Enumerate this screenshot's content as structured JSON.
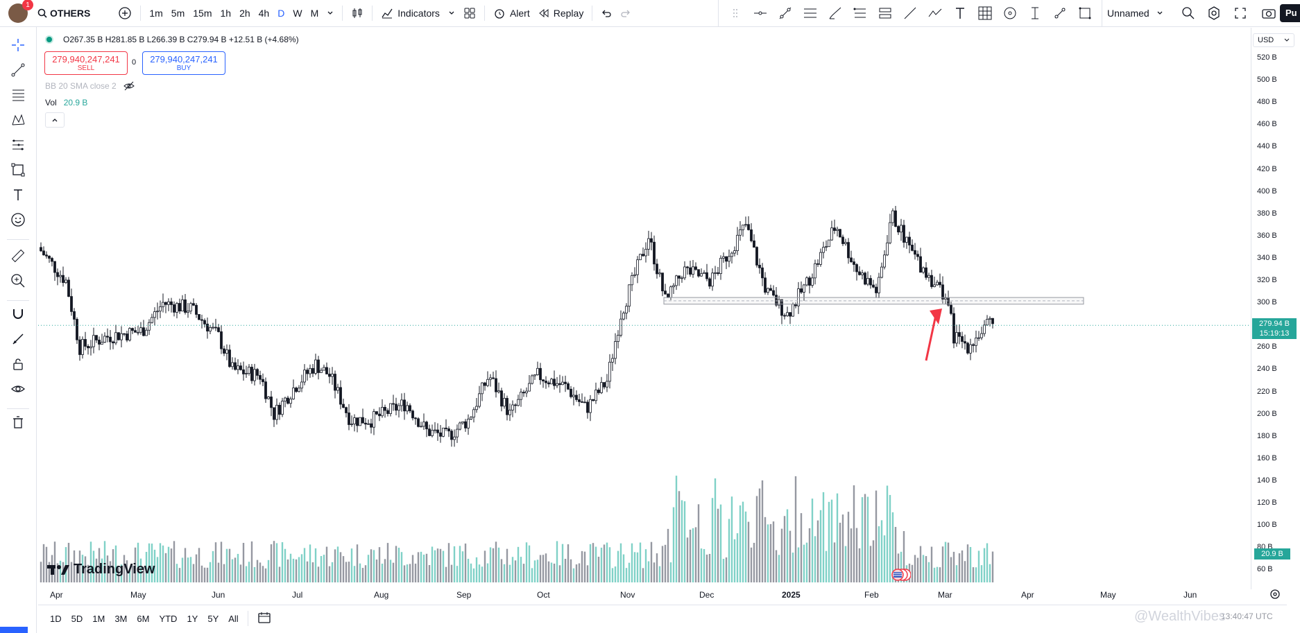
{
  "topbar": {
    "avatar_badge": "1",
    "symbol": "OTHERS",
    "timeframes": [
      "1m",
      "5m",
      "15m",
      "1h",
      "2h",
      "4h",
      "D",
      "W",
      "M"
    ],
    "active_timeframe": "D",
    "indicators_label": "Indicators",
    "alert_label": "Alert",
    "replay_label": "Replay",
    "layout_name": "Unnamed",
    "publish_label": "Pu"
  },
  "legend": {
    "ohlc": "O267.35 B  H281.85 B  L266.39 B  C279.94 B  +12.51 B (+4.68%)",
    "sell_price": "279,940,247,241",
    "sell_label": "SELL",
    "spread": "0",
    "buy_price": "279,940,247,241",
    "buy_label": "BUY",
    "bb": "BB 20 SMA close 2",
    "vol_label": "Vol",
    "vol_value": "20.9 B"
  },
  "price_axis": {
    "currency": "USD",
    "labels": [
      "520 B",
      "500 B",
      "480 B",
      "460 B",
      "440 B",
      "420 B",
      "400 B",
      "380 B",
      "360 B",
      "340 B",
      "320 B",
      "300 B",
      "260 B",
      "240 B",
      "220 B",
      "200 B",
      "180 B",
      "160 B",
      "140 B",
      "120 B",
      "100 B",
      "80 B",
      "60 B"
    ],
    "last_price": "279.94 B",
    "countdown": "15:19:13",
    "volume_tag": "20.9 B"
  },
  "time_axis": {
    "labels": [
      "Apr",
      "May",
      "Jun",
      "Jul",
      "Aug",
      "Sep",
      "Oct",
      "Nov",
      "Dec",
      "2025",
      "Feb",
      "Mar",
      "Apr",
      "May",
      "Jun"
    ]
  },
  "bottom": {
    "ranges": [
      "1D",
      "5D",
      "1M",
      "3M",
      "6M",
      "YTD",
      "1Y",
      "5Y",
      "All"
    ],
    "time": "13:40:47 UTC"
  },
  "branding": {
    "logo_text": "TradingView",
    "watermark": "@WealthVibes"
  },
  "colors": {
    "up": "#26a69a",
    "down": "#131722",
    "accent": "#2962ff",
    "sell": "#f23645",
    "arrow": "#f23645"
  }
}
